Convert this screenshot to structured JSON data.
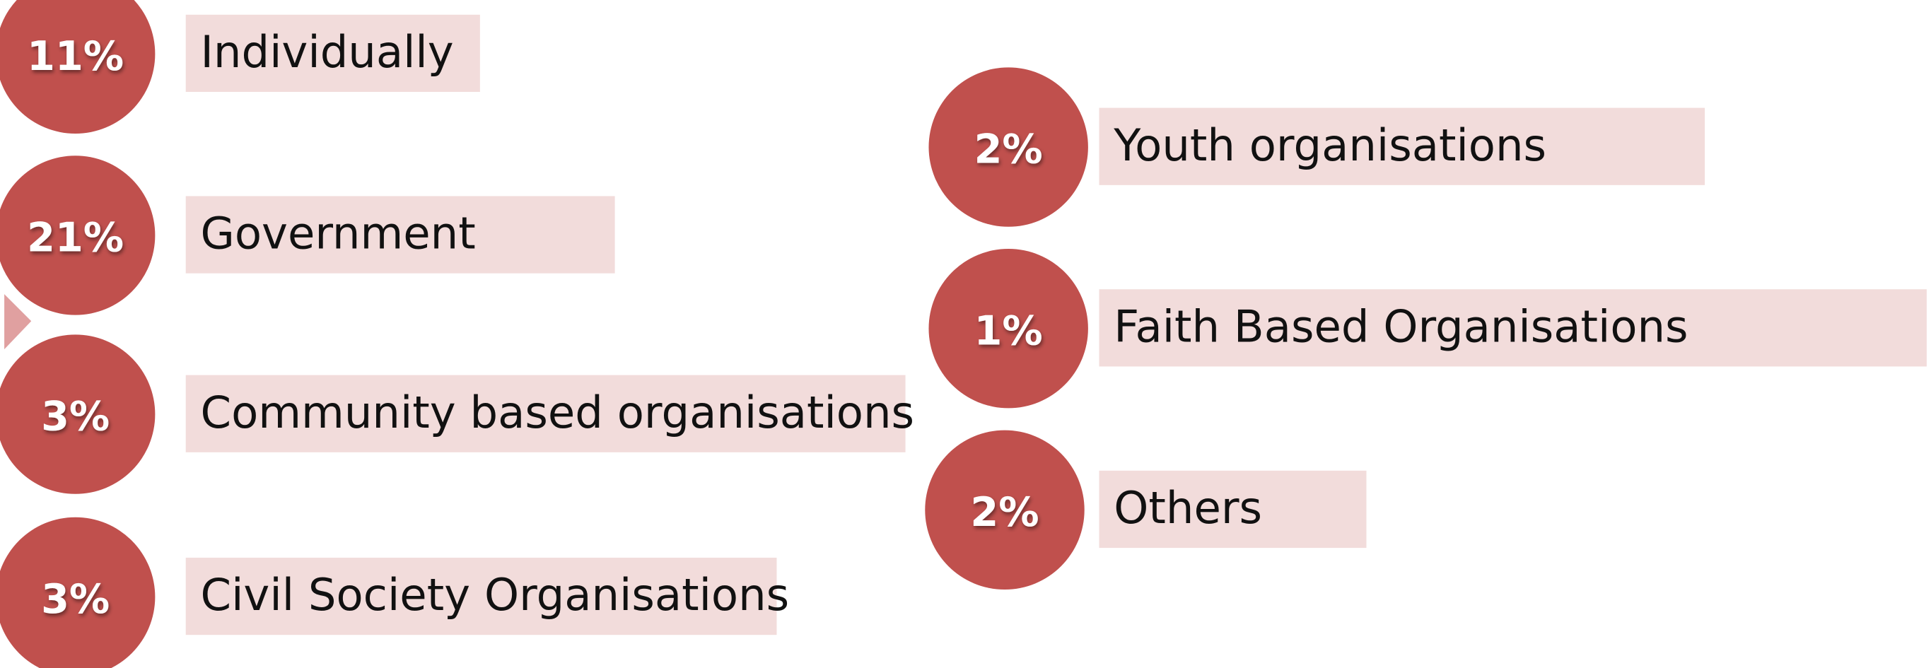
{
  "items": [
    {
      "percent": "11%",
      "label": "Individually"
    },
    {
      "percent": "21%",
      "label": "Government"
    },
    {
      "percent": "3%",
      "label": "Community based organisations"
    },
    {
      "percent": "3%",
      "label": "Civil Society Organisations"
    },
    {
      "percent": "2%",
      "label": "Youth organisations"
    },
    {
      "percent": "1%",
      "label": "Faith Based Organisations"
    },
    {
      "percent": "2%",
      "label": "Others"
    }
  ]
}
